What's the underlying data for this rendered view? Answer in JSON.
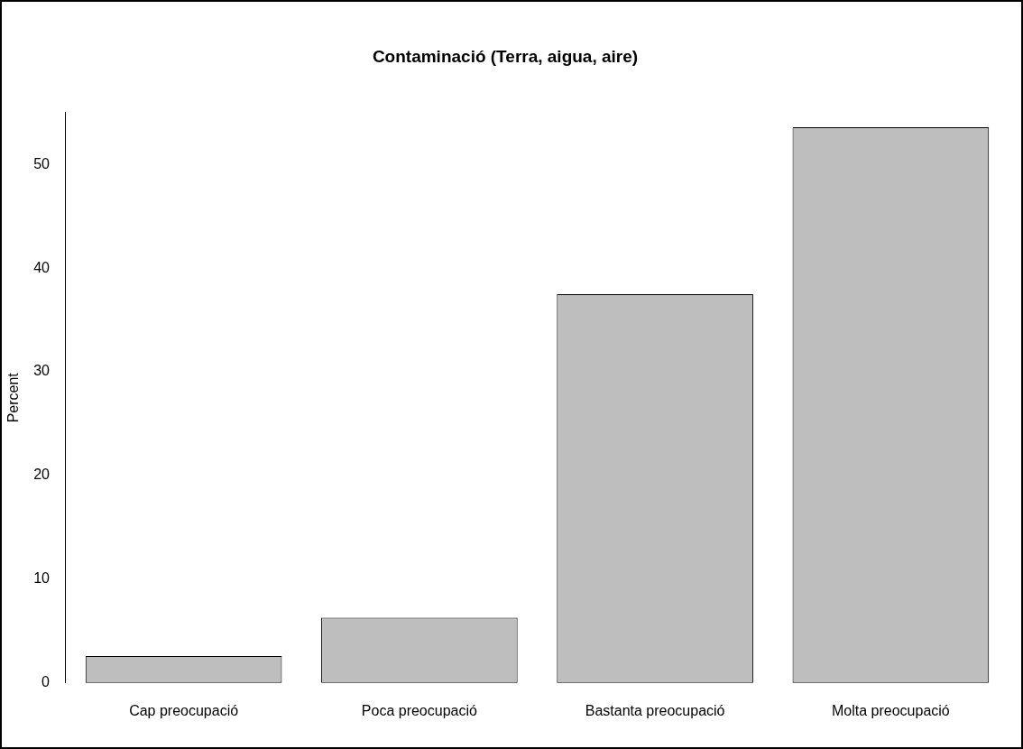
{
  "chart_data": {
    "type": "bar",
    "title": "Contaminació (Terra, aigua, aire)",
    "ylabel": "Percent",
    "categories": [
      "Cap preocupació",
      "Poca preocupació",
      "Bastanta preocupació",
      "Molta preocupació"
    ],
    "values": [
      2.6,
      6.3,
      37.5,
      53.6
    ],
    "color": "#bebebe",
    "ylim": [
      0,
      55
    ],
    "yticks": [
      0,
      10,
      20,
      30,
      40,
      50
    ]
  }
}
